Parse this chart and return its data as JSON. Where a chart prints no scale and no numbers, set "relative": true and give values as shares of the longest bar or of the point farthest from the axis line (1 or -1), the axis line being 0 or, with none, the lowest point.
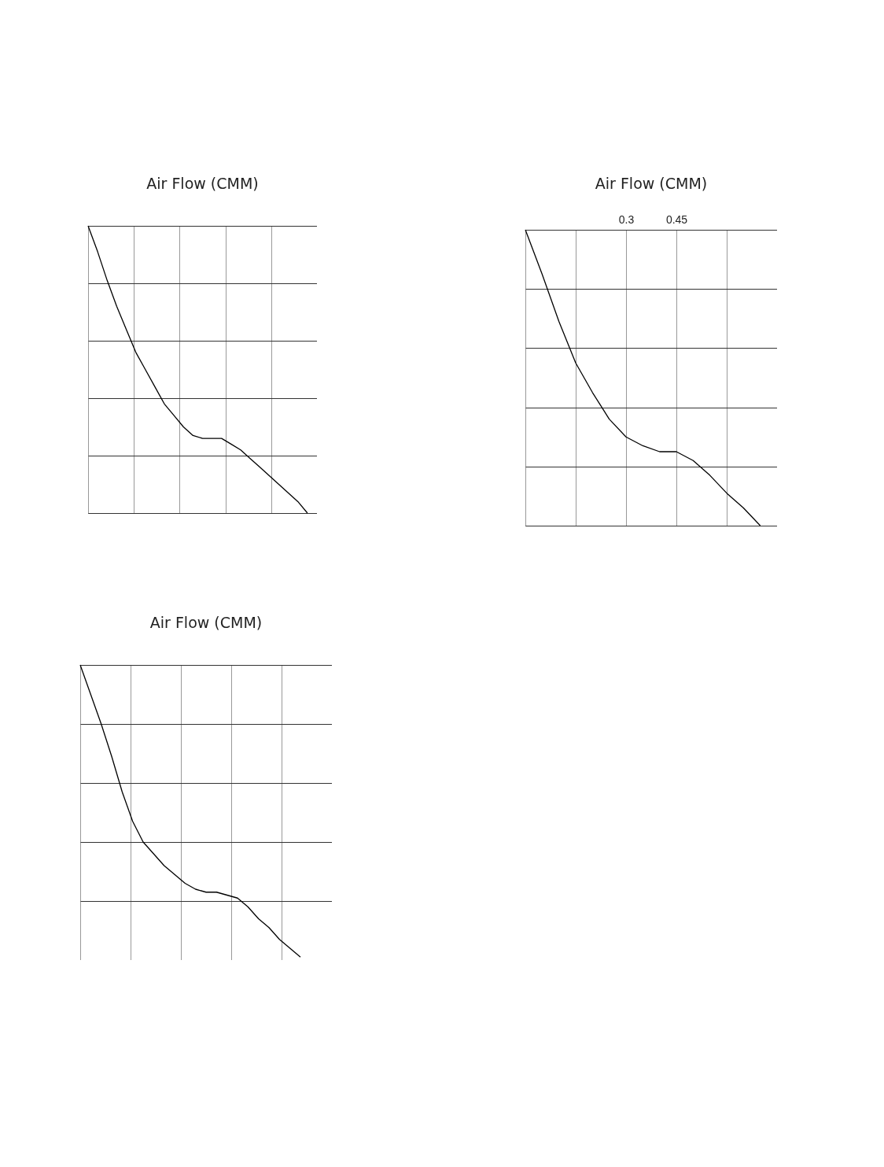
{
  "chart_data": [
    {
      "type": "line",
      "title": "Air Flow (CMM)",
      "relative": true,
      "grid": true,
      "tick_labels": false,
      "categories": [
        null,
        null,
        null,
        null,
        null,
        null,
        null,
        null,
        null,
        null,
        null,
        null,
        null,
        null,
        null,
        null,
        null,
        null,
        null,
        null,
        null,
        null,
        null,
        null,
        null
      ],
      "series": [
        {
          "color": "#000000",
          "values": [
            1,
            0.91,
            0.81,
            0.72,
            0.64,
            0.56,
            0.5,
            0.44,
            0.38,
            0.34,
            0.3,
            0.27,
            0.26,
            0.26,
            0.26,
            0.24,
            0.22,
            0.19,
            0.16,
            0.13,
            0.1,
            0.07,
            0.04,
            0.0,
            null
          ]
        }
      ]
    },
    {
      "type": "line",
      "title": "Air Flow (CMM)",
      "relative": true,
      "grid": true,
      "tick_labels": "x",
      "xlim": [
        0,
        0.75
      ],
      "xticks": [
        {
          "value": 0,
          "label": null
        },
        {
          "value": 0.15,
          "label": null
        },
        0.3,
        0.45,
        {
          "value": 0.6,
          "label": null
        },
        {
          "value": 0.75,
          "label": null
        }
      ],
      "x": [
        0,
        0.05,
        0.1,
        0.15,
        0.2,
        0.25,
        0.3,
        0.35,
        0.4,
        0.45,
        0.5,
        0.55,
        0.6,
        0.65,
        0.7
      ],
      "series": [
        {
          "color": "#000000",
          "values": [
            1,
            0.85,
            0.69,
            0.55,
            0.45,
            0.36,
            0.3,
            0.27,
            0.25,
            0.25,
            0.22,
            0.17,
            0.11,
            0.06,
            0
          ]
        }
      ]
    },
    {
      "type": "line",
      "title": "Air Flow (CMM)",
      "relative": true,
      "grid": true,
      "tick_labels": false,
      "categories": [
        null,
        null,
        null,
        null,
        null,
        null,
        null,
        null,
        null,
        null,
        null,
        null,
        null,
        null,
        null,
        null,
        null,
        null,
        null,
        null,
        null,
        null,
        null,
        null,
        null
      ],
      "series": [
        {
          "color": "#000000",
          "values": [
            1,
            0.9,
            0.8,
            0.69,
            0.57,
            0.47,
            0.4,
            0.36,
            0.32,
            0.29,
            0.26,
            0.24,
            0.23,
            0.23,
            0.22,
            0.21,
            0.18,
            0.14,
            0.11,
            0.07,
            0.04,
            0.01,
            null,
            null,
            null
          ]
        }
      ]
    }
  ]
}
